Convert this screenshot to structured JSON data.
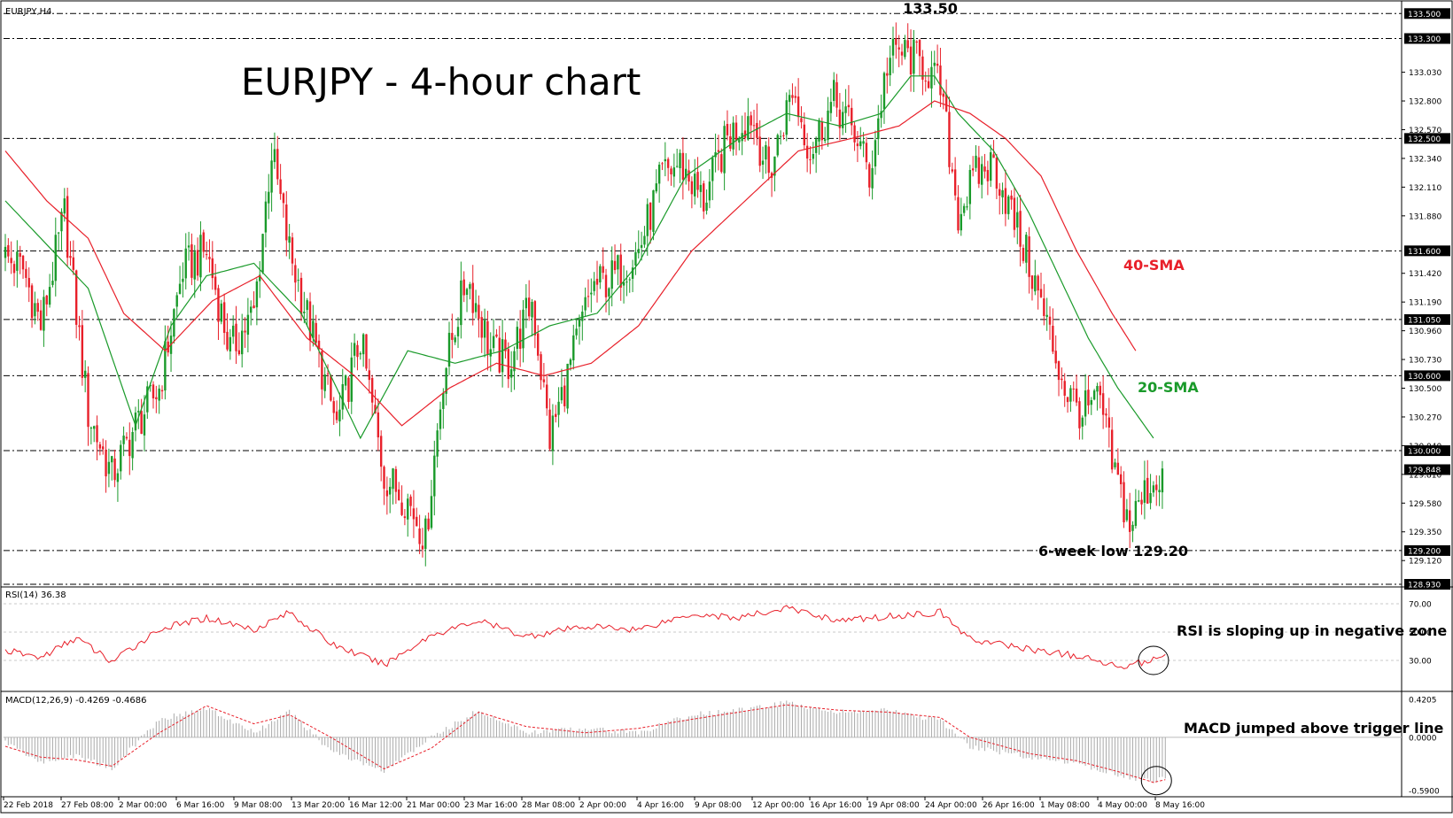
{
  "chart_data": [
    {
      "type": "candlestick",
      "symbol_label": "EURJPY,H4",
      "title": "EURJPY - 4-hour chart",
      "ylim": [
        128.93,
        133.58
      ],
      "price_axis_ticks": [
        "133.030",
        "132.800",
        "132.570",
        "132.340",
        "132.110",
        "131.880",
        "131.420",
        "131.190",
        "130.960",
        "130.730",
        "130.500",
        "130.270",
        "130.040",
        "129.810",
        "129.580",
        "129.350",
        "129.120"
      ],
      "price_levels": [
        {
          "value": 133.5,
          "label": "133.500"
        },
        {
          "value": 133.3,
          "label": "133.300"
        },
        {
          "value": 132.5,
          "label": "132.500"
        },
        {
          "value": 131.6,
          "label": "131.600"
        },
        {
          "value": 131.05,
          "label": "131.050"
        },
        {
          "value": 130.6,
          "label": "130.600"
        },
        {
          "value": 130.0,
          "label": "130.000"
        },
        {
          "value": 129.2,
          "label": "129.200"
        },
        {
          "value": 128.93,
          "label": "128.930"
        }
      ],
      "current_price": {
        "value": 129.848,
        "label": "129.848"
      },
      "close_path": [
        [
          0,
          131.55
        ],
        [
          6,
          131.45
        ],
        [
          12,
          131.0
        ],
        [
          20,
          131.9
        ],
        [
          28,
          130.3
        ],
        [
          36,
          129.8
        ],
        [
          44,
          130.2
        ],
        [
          52,
          130.5
        ],
        [
          60,
          131.45
        ],
        [
          68,
          131.6
        ],
        [
          76,
          130.8
        ],
        [
          84,
          131.1
        ],
        [
          90,
          132.4
        ],
        [
          96,
          131.6
        ],
        [
          104,
          130.9
        ],
        [
          112,
          130.2
        ],
        [
          120,
          130.9
        ],
        [
          128,
          129.8
        ],
        [
          136,
          129.6
        ],
        [
          142,
          129.3
        ],
        [
          148,
          130.6
        ],
        [
          156,
          131.4
        ],
        [
          164,
          130.8
        ],
        [
          170,
          130.7
        ],
        [
          178,
          131.2
        ],
        [
          184,
          130.1
        ],
        [
          190,
          130.6
        ],
        [
          198,
          131.3
        ],
        [
          206,
          131.4
        ],
        [
          214,
          131.6
        ],
        [
          222,
          132.2
        ],
        [
          228,
          132.3
        ],
        [
          236,
          132.0
        ],
        [
          244,
          132.5
        ],
        [
          252,
          132.7
        ],
        [
          258,
          132.2
        ],
        [
          266,
          132.9
        ],
        [
          272,
          132.4
        ],
        [
          280,
          132.8
        ],
        [
          288,
          132.5
        ],
        [
          292,
          132.2
        ],
        [
          298,
          133.1
        ],
        [
          302,
          133.2
        ],
        [
          310,
          133.1
        ],
        [
          316,
          132.9
        ],
        [
          322,
          131.9
        ],
        [
          328,
          132.2
        ],
        [
          334,
          132.3
        ],
        [
          340,
          131.9
        ],
        [
          346,
          131.5
        ],
        [
          352,
          131.0
        ],
        [
          358,
          130.5
        ],
        [
          364,
          130.3
        ],
        [
          370,
          130.4
        ],
        [
          374,
          129.9
        ],
        [
          380,
          129.4
        ],
        [
          386,
          129.7
        ],
        [
          390,
          129.8
        ]
      ],
      "sma20_path": [
        [
          0,
          132.0
        ],
        [
          12,
          131.7
        ],
        [
          28,
          131.3
        ],
        [
          44,
          130.2
        ],
        [
          56,
          131.0
        ],
        [
          68,
          131.4
        ],
        [
          84,
          131.5
        ],
        [
          100,
          131.1
        ],
        [
          120,
          130.1
        ],
        [
          136,
          130.8
        ],
        [
          152,
          130.7
        ],
        [
          168,
          130.8
        ],
        [
          184,
          131.0
        ],
        [
          200,
          131.1
        ],
        [
          214,
          131.5
        ],
        [
          230,
          132.2
        ],
        [
          248,
          132.5
        ],
        [
          264,
          132.7
        ],
        [
          282,
          132.6
        ],
        [
          296,
          132.7
        ],
        [
          306,
          133.0
        ],
        [
          314,
          133.0
        ],
        [
          322,
          132.7
        ],
        [
          334,
          132.4
        ],
        [
          346,
          131.9
        ],
        [
          356,
          131.4
        ],
        [
          366,
          130.9
        ],
        [
          376,
          130.5
        ],
        [
          388,
          130.1
        ]
      ],
      "sma40_path": [
        [
          0,
          132.4
        ],
        [
          14,
          132.0
        ],
        [
          28,
          131.7
        ],
        [
          40,
          131.1
        ],
        [
          54,
          130.8
        ],
        [
          70,
          131.2
        ],
        [
          86,
          131.4
        ],
        [
          102,
          130.9
        ],
        [
          118,
          130.6
        ],
        [
          134,
          130.2
        ],
        [
          150,
          130.5
        ],
        [
          166,
          130.7
        ],
        [
          182,
          130.6
        ],
        [
          198,
          130.7
        ],
        [
          214,
          131.0
        ],
        [
          232,
          131.6
        ],
        [
          250,
          132.0
        ],
        [
          268,
          132.4
        ],
        [
          286,
          132.5
        ],
        [
          302,
          132.6
        ],
        [
          314,
          132.8
        ],
        [
          326,
          132.7
        ],
        [
          338,
          132.5
        ],
        [
          350,
          132.2
        ],
        [
          362,
          131.6
        ],
        [
          374,
          131.1
        ],
        [
          382,
          130.8
        ]
      ],
      "series": [
        {
          "name": "20-SMA",
          "color": "#1a9a2a"
        },
        {
          "name": "40-SMA",
          "color": "#e8202a"
        }
      ],
      "annotations": [
        {
          "text": "133.50",
          "at": [
            316,
            133.5
          ]
        },
        {
          "text": "40-SMA",
          "at": [
            375,
            131.37
          ],
          "color": "#e8202a"
        },
        {
          "text": "20-SMA",
          "at": [
            378,
            130.52
          ],
          "color": "#1a9a2a"
        },
        {
          "text": "6-week low 129.20",
          "at": [
            360,
            129.13
          ]
        }
      ],
      "x_tick_labels": [
        "22 Feb 2018",
        "27 Feb 08:00",
        "2 Mar 00:00",
        "6 Mar 16:00",
        "9 Mar 08:00",
        "13 Mar 20:00",
        "16 Mar 12:00",
        "21 Mar 00:00",
        "23 Mar 16:00",
        "28 Mar 08:00",
        "2 Apr 00:00",
        "4 Apr 16:00",
        "9 Apr 08:00",
        "12 Apr 00:00",
        "16 Apr 16:00",
        "19 Apr 08:00",
        "24 Apr 00:00",
        "26 Apr 16:00",
        "1 May 08:00",
        "4 May 00:00",
        "8 May 16:00"
      ],
      "up_color": "#1a9a2a",
      "down_color": "#e8202a"
    },
    {
      "type": "line",
      "label": "RSI(14) 36.38",
      "ylim": [
        10,
        80
      ],
      "levels": [
        {
          "value": 70,
          "label": "70.00"
        },
        {
          "value": 50,
          "label": "50.00"
        },
        {
          "value": 30,
          "label": "30.00"
        }
      ],
      "rsi_path": [
        [
          0,
          37
        ],
        [
          12,
          32
        ],
        [
          24,
          46
        ],
        [
          36,
          29
        ],
        [
          52,
          52
        ],
        [
          68,
          60
        ],
        [
          84,
          52
        ],
        [
          96,
          64
        ],
        [
          110,
          42
        ],
        [
          128,
          27
        ],
        [
          144,
          48
        ],
        [
          160,
          58
        ],
        [
          176,
          47
        ],
        [
          196,
          54
        ],
        [
          214,
          52
        ],
        [
          232,
          63
        ],
        [
          248,
          60
        ],
        [
          264,
          67
        ],
        [
          282,
          58
        ],
        [
          298,
          61
        ],
        [
          316,
          64
        ],
        [
          326,
          45
        ],
        [
          346,
          38
        ],
        [
          362,
          33
        ],
        [
          376,
          26
        ],
        [
          388,
          30
        ],
        [
          392,
          36
        ]
      ],
      "annotations": [
        {
          "text": "RSI is sloping up in negative zone"
        }
      ],
      "color": "#e8202a"
    },
    {
      "type": "bar",
      "label": "MACD(12,26,9) -0.4269 -0.4686",
      "ylim": [
        -0.64,
        0.48
      ],
      "levels": [
        {
          "value": 0.4205,
          "label": "0.4205"
        },
        {
          "value": 0.0,
          "label": "0.0000"
        },
        {
          "value": -0.59,
          "label": "-0.5900"
        }
      ],
      "macd_path": [
        [
          0,
          -0.05
        ],
        [
          12,
          -0.28
        ],
        [
          24,
          -0.2
        ],
        [
          36,
          -0.35
        ],
        [
          52,
          0.2
        ],
        [
          68,
          0.32
        ],
        [
          84,
          0.05
        ],
        [
          96,
          0.28
        ],
        [
          110,
          -0.15
        ],
        [
          128,
          -0.38
        ],
        [
          144,
          0.0
        ],
        [
          160,
          0.3
        ],
        [
          176,
          0.05
        ],
        [
          196,
          0.1
        ],
        [
          214,
          0.05
        ],
        [
          232,
          0.25
        ],
        [
          248,
          0.3
        ],
        [
          264,
          0.38
        ],
        [
          282,
          0.28
        ],
        [
          298,
          0.3
        ],
        [
          316,
          0.18
        ],
        [
          326,
          -0.1
        ],
        [
          346,
          -0.22
        ],
        [
          362,
          -0.28
        ],
        [
          376,
          -0.42
        ],
        [
          388,
          -0.5
        ],
        [
          392,
          -0.43
        ]
      ],
      "signal_path": [
        [
          0,
          -0.1
        ],
        [
          12,
          -0.22
        ],
        [
          24,
          -0.25
        ],
        [
          36,
          -0.32
        ],
        [
          52,
          0.05
        ],
        [
          68,
          0.35
        ],
        [
          84,
          0.15
        ],
        [
          96,
          0.25
        ],
        [
          110,
          0.0
        ],
        [
          128,
          -0.35
        ],
        [
          144,
          -0.12
        ],
        [
          160,
          0.28
        ],
        [
          176,
          0.12
        ],
        [
          196,
          0.05
        ],
        [
          214,
          0.1
        ],
        [
          232,
          0.2
        ],
        [
          248,
          0.28
        ],
        [
          264,
          0.36
        ],
        [
          282,
          0.3
        ],
        [
          298,
          0.28
        ],
        [
          316,
          0.22
        ],
        [
          326,
          0.0
        ],
        [
          346,
          -0.18
        ],
        [
          362,
          -0.26
        ],
        [
          376,
          -0.38
        ],
        [
          388,
          -0.5
        ],
        [
          392,
          -0.47
        ]
      ],
      "annotations": [
        {
          "text": "MACD jumped above trigger line"
        }
      ],
      "histogram_color": "#aaaaaa",
      "signal_color": "#e8202a"
    }
  ]
}
